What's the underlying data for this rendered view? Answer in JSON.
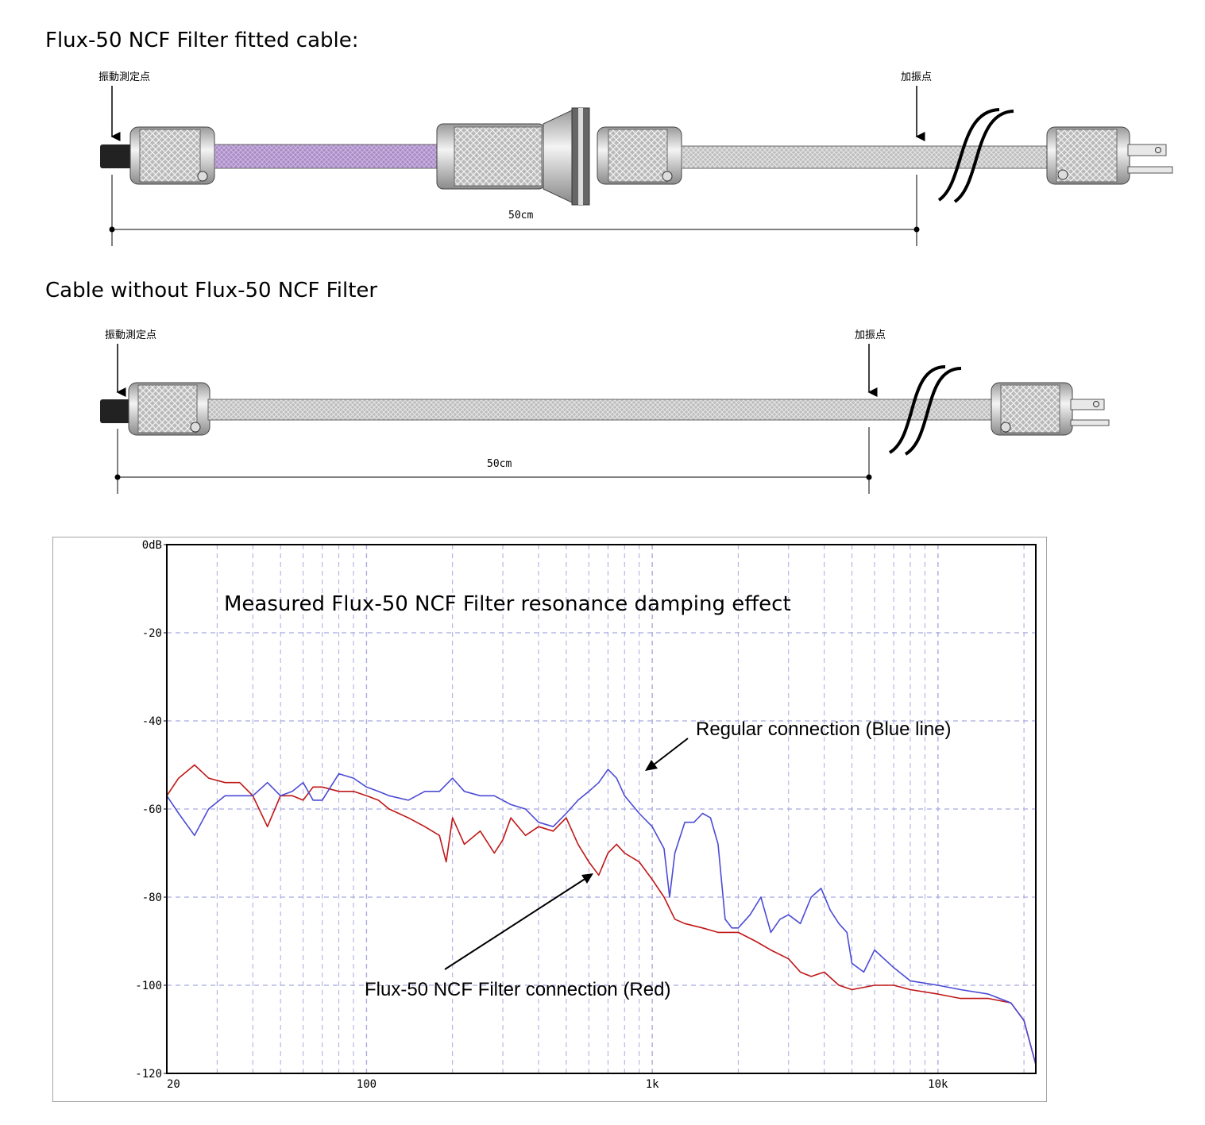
{
  "diagram1": {
    "title": "Flux-50 NCF Filter fitted cable:",
    "measure_label": "振動測定点",
    "excite_label": "加振点",
    "length_label": "50cm"
  },
  "diagram2": {
    "title": "Cable without Flux-50 NCF Filter",
    "measure_label": "振動測定点",
    "excite_label": "加振点",
    "length_label": "50cm"
  },
  "colors": {
    "blue_series": "#4b4bd6",
    "red_series": "#c01616",
    "grid": "#a9a9e0",
    "purple_cable": "#a98ac7"
  },
  "chart_data": {
    "type": "line",
    "title": "Measured Flux-50 NCF Filter resonance damping effect",
    "x_scale": "log",
    "xlim": [
      20,
      22000
    ],
    "ylim": [
      -120,
      0
    ],
    "y_ticks": [
      "0dB",
      "-20",
      "-40",
      "-60",
      "-80",
      "-100",
      "-120"
    ],
    "x_ticks": [
      "20",
      "100",
      "1k",
      "10k"
    ],
    "grid": true,
    "annotations": {
      "blue": "Regular connection (Blue line)",
      "red": "Flux-50 NCF Filter connection (Red)"
    },
    "series": [
      {
        "name": "Regular connection (Blue line)",
        "color": "blue",
        "x": [
          20,
          22,
          25,
          28,
          32,
          36,
          40,
          45,
          50,
          55,
          60,
          65,
          70,
          80,
          90,
          100,
          110,
          120,
          140,
          160,
          180,
          200,
          220,
          250,
          280,
          320,
          360,
          400,
          450,
          500,
          550,
          600,
          650,
          700,
          750,
          800,
          900,
          1000,
          1100,
          1150,
          1200,
          1300,
          1400,
          1500,
          1600,
          1700,
          1800,
          1900,
          2000,
          2200,
          2400,
          2600,
          2800,
          3000,
          3300,
          3600,
          3900,
          4200,
          4500,
          4800,
          5000,
          5500,
          6000,
          7000,
          8000,
          10000,
          12000,
          15000,
          18000,
          20000,
          22000
        ],
        "y": [
          -57,
          -61,
          -66,
          -60,
          -57,
          -57,
          -57,
          -54,
          -57,
          -56,
          -54,
          -58,
          -58,
          -52,
          -53,
          -55,
          -56,
          -57,
          -58,
          -56,
          -56,
          -53,
          -56,
          -57,
          -57,
          -59,
          -60,
          -63,
          -64,
          -61,
          -58,
          -56,
          -54,
          -51,
          -53,
          -57,
          -61,
          -64,
          -69,
          -80,
          -70,
          -63,
          -63,
          -61,
          -62,
          -68,
          -85,
          -87,
          -87,
          -84,
          -80,
          -88,
          -85,
          -84,
          -86,
          -80,
          -78,
          -83,
          -86,
          -88,
          -95,
          -97,
          -92,
          -96,
          -99,
          -100,
          -101,
          -102,
          -104,
          -108,
          -118
        ]
      },
      {
        "name": "Flux-50 NCF Filter connection (Red)",
        "color": "red",
        "x": [
          20,
          22,
          25,
          28,
          32,
          36,
          40,
          45,
          50,
          55,
          60,
          65,
          70,
          80,
          90,
          100,
          110,
          120,
          140,
          160,
          180,
          190,
          200,
          220,
          250,
          280,
          300,
          320,
          360,
          400,
          450,
          500,
          550,
          600,
          650,
          700,
          750,
          800,
          900,
          1000,
          1100,
          1200,
          1300,
          1500,
          1700,
          2000,
          2300,
          2600,
          3000,
          3300,
          3600,
          4000,
          4500,
          5000,
          6000,
          7000,
          8000,
          10000,
          12000,
          15000,
          18000,
          20000,
          22000
        ],
        "y": [
          -57,
          -53,
          -50,
          -53,
          -54,
          -54,
          -57,
          -64,
          -57,
          -57,
          -58,
          -55,
          -55,
          -56,
          -56,
          -57,
          -58,
          -60,
          -62,
          -64,
          -66,
          -72,
          -62,
          -68,
          -65,
          -70,
          -67,
          -62,
          -66,
          -64,
          -65,
          -62,
          -68,
          -72,
          -75,
          -70,
          -68,
          -70,
          -72,
          -76,
          -80,
          -85,
          -86,
          -87,
          -88,
          -88,
          -90,
          -92,
          -94,
          -97,
          -98,
          -97,
          -100,
          -101,
          -100,
          -100,
          -101,
          -102,
          -103,
          -103,
          -104,
          -108,
          -118
        ]
      }
    ]
  }
}
